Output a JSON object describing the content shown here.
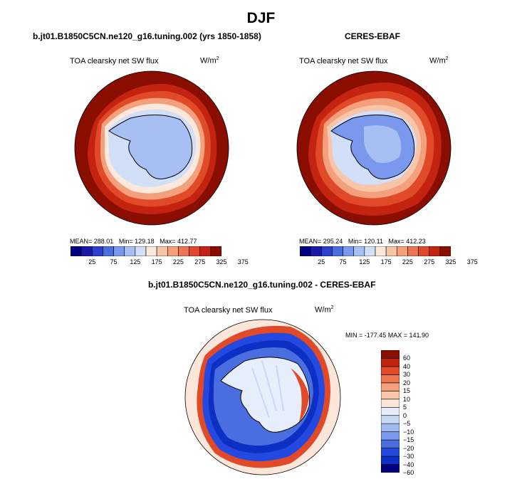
{
  "figure": {
    "title": "DJF",
    "panels": [
      {
        "title": "b.jt01.B1850C5CN.ne120_g16.tuning.002 (yrs 1850-1858)",
        "variable": "TOA clearsky net SW flux",
        "units_base": "W/m",
        "units_sup": "2",
        "stats": {
          "mean_label": "MEAN=",
          "mean": "288.01",
          "min_label": "Min=",
          "min": "129.18",
          "max_label": "Max=",
          "max": "412.77"
        }
      },
      {
        "title": "CERES-EBAF",
        "variable": "TOA clearsky net SW flux",
        "units_base": "W/m",
        "units_sup": "2",
        "stats": {
          "mean_label": "MEAN=",
          "mean": "295.24",
          "min_label": "Min=",
          "min": "120.11",
          "max_label": "Max=",
          "max": "412.23"
        }
      },
      {
        "title": "b.jt01.B1850C5CN.ne120_g16.tuning.002 - CERES-EBAF",
        "variable": "TOA clearsky net SW flux",
        "units_base": "W/m",
        "units_sup": "2",
        "stats_text": "MIN = -177.45  MAX = 141.90"
      }
    ],
    "colorbar_abs": {
      "colors": [
        "#000080",
        "#1a1aa6",
        "#2d3fcc",
        "#4a6ee0",
        "#7a98ee",
        "#a8bff3",
        "#d2dff8",
        "#fde9dc",
        "#f9c5a8",
        "#f5a07c",
        "#ee7550",
        "#e04a28",
        "#c42310",
        "#8a0e00"
      ],
      "ticks": [
        "25",
        "75",
        "125",
        "175",
        "225",
        "275",
        "325",
        "375"
      ]
    },
    "colorbar_diff": {
      "colors": [
        "#000080",
        "#0d2fc4",
        "#2449e0",
        "#4a6ee0",
        "#7a98ee",
        "#a2baf2",
        "#c8d7f6",
        "#e6eefb",
        "#fce6d9",
        "#f9c5a8",
        "#f5a07c",
        "#ee7550",
        "#e04a28",
        "#c42310",
        "#8a0e00"
      ],
      "labels": [
        "60",
        "40",
        "30",
        "20",
        "15",
        "10",
        "5",
        "0",
        "−5",
        "−10",
        "−15",
        "−20",
        "−30",
        "−40",
        "−60"
      ]
    }
  }
}
